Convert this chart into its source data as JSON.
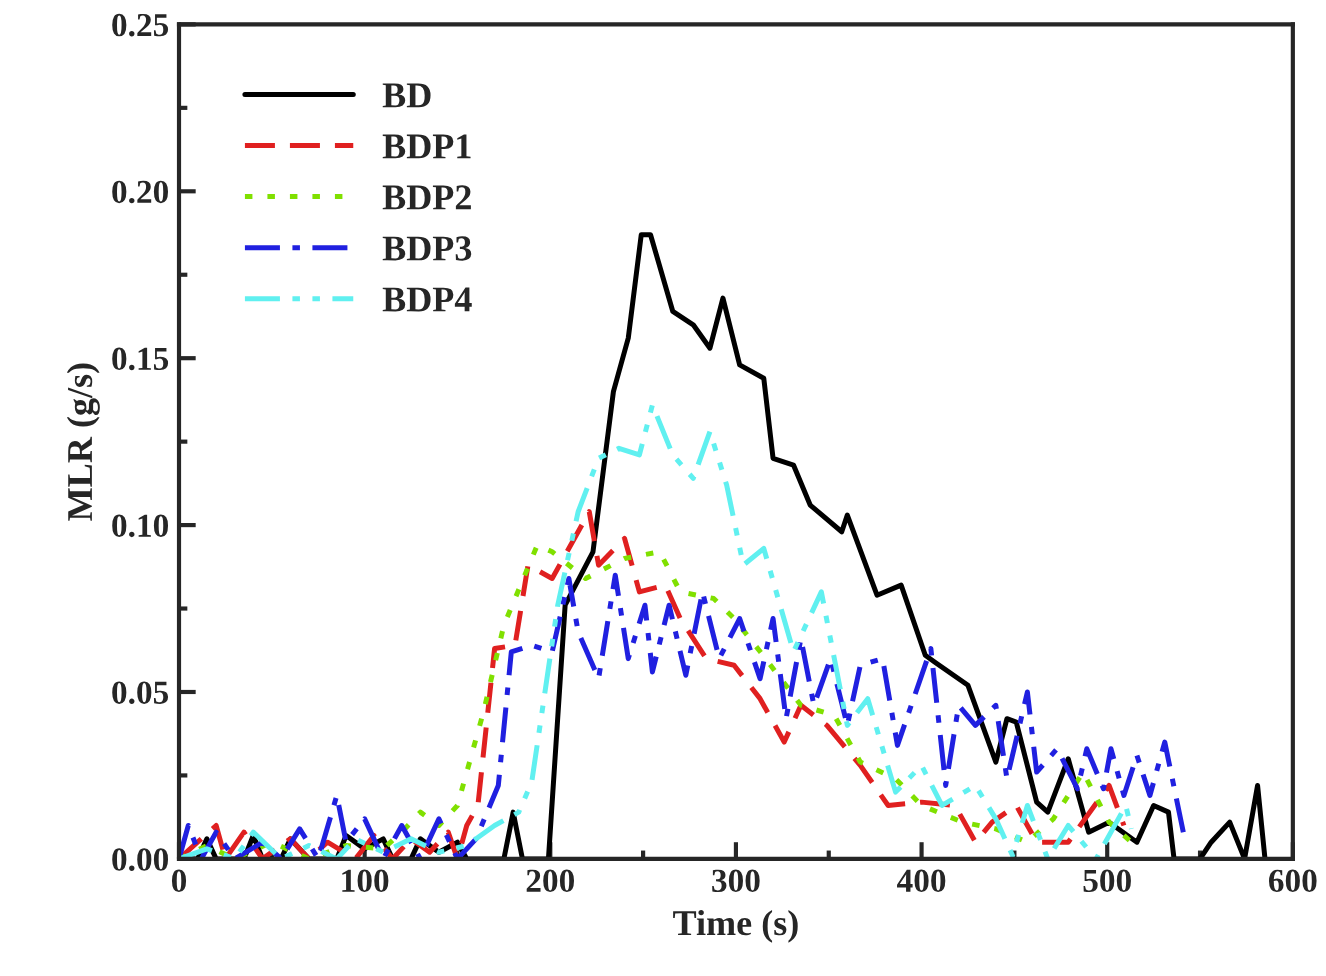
{
  "chart_data": {
    "type": "line",
    "xlabel": "Time (s)",
    "ylabel": "MLR (g/s)",
    "xlim": [
      0,
      600
    ],
    "xticks": [
      0,
      100,
      200,
      300,
      400,
      500,
      600
    ],
    "ylim": [
      0,
      0.25
    ],
    "yticks": [
      {
        "value": 0,
        "label": "0.00"
      },
      {
        "value": 0.05,
        "label": "0.05"
      },
      {
        "value": 0.1,
        "label": "0.10"
      },
      {
        "value": 0.15,
        "label": "0.15"
      },
      {
        "value": 0.2,
        "label": "0.20"
      },
      {
        "value": 0.25,
        "label": "0.25"
      }
    ],
    "grid": false,
    "legend": "top left",
    "marker": "none",
    "series": [
      {
        "name": "BD",
        "color": "#000000",
        "line_style": "solid",
        "x": [
          0,
          10,
          15,
          20,
          35,
          40,
          45,
          55,
          60,
          70,
          85,
          90,
          100,
          110,
          115,
          125,
          130,
          140,
          150,
          155,
          165,
          175,
          180,
          185,
          199,
          208,
          223,
          234,
          242,
          249,
          254,
          266,
          277,
          286,
          293,
          302,
          315,
          320,
          331,
          340,
          357,
          360,
          376,
          389,
          402,
          407,
          425,
          440,
          446,
          451,
          462,
          468,
          479,
          490,
          501,
          516,
          525,
          533,
          536,
          550,
          556,
          566,
          574,
          581,
          585
        ],
        "values": [
          0,
          0,
          0.006,
          0,
          0,
          0.007,
          0,
          0,
          0.006,
          0,
          0,
          0.007,
          0.003,
          0.006,
          0,
          0,
          0.006,
          0.002,
          0.005,
          0,
          0,
          0,
          0.014,
          0,
          0,
          0.076,
          0.092,
          0.14,
          0.156,
          0.187,
          0.187,
          0.164,
          0.16,
          0.153,
          0.168,
          0.148,
          0.144,
          0.12,
          0.118,
          0.106,
          0.098,
          0.103,
          0.079,
          0.082,
          0.061,
          0.059,
          0.052,
          0.029,
          0.042,
          0.041,
          0.017,
          0.014,
          0.03,
          0.008,
          0.011,
          0.005,
          0.016,
          0.014,
          0,
          0,
          0.005,
          0.011,
          0,
          0.022,
          0
        ]
      },
      {
        "name": "BDP1",
        "color": "#e02020",
        "line_style": "dashed",
        "x": [
          0,
          10,
          20,
          25,
          35,
          45,
          60,
          70,
          80,
          95,
          105,
          115,
          125,
          135,
          145,
          150,
          155,
          161,
          170,
          181,
          188,
          201,
          221,
          226,
          240,
          248,
          262,
          270,
          284,
          299,
          313,
          326,
          335,
          349,
          367,
          382,
          400,
          418,
          429,
          438,
          451,
          462,
          479,
          501,
          509
        ],
        "values": [
          0,
          0.005,
          0.01,
          0,
          0.008,
          0,
          0.006,
          0,
          0.005,
          0,
          0.007,
          0,
          0.006,
          0.002,
          0.008,
          0,
          0.01,
          0.016,
          0.063,
          0.064,
          0.088,
          0.084,
          0.104,
          0.088,
          0.096,
          0.08,
          0.082,
          0.072,
          0.06,
          0.058,
          0.048,
          0.035,
          0.046,
          0.04,
          0.028,
          0.016,
          0.017,
          0.016,
          0.005,
          0.011,
          0.016,
          0.005,
          0.005,
          0.022,
          0.01
        ]
      },
      {
        "name": "BDP2",
        "color": "#80e000",
        "line_style": "dotted",
        "x": [
          0,
          15,
          30,
          50,
          70,
          90,
          110,
          120,
          130,
          140,
          150,
          164,
          175,
          193,
          201,
          219,
          240,
          259,
          270,
          288,
          299,
          316,
          335,
          353,
          367,
          386,
          400,
          422,
          440,
          457,
          471,
          487,
          501,
          513
        ],
        "values": [
          0,
          0.004,
          0,
          0.005,
          0,
          0.004,
          0.003,
          0.008,
          0.014,
          0.01,
          0.016,
          0.044,
          0.07,
          0.094,
          0.092,
          0.084,
          0.09,
          0.092,
          0.08,
          0.078,
          0.072,
          0.06,
          0.046,
          0.043,
          0.029,
          0.024,
          0.016,
          0.011,
          0.009,
          0.005,
          0.012,
          0.026,
          0.011,
          0.005
        ]
      },
      {
        "name": "BDP3",
        "color": "#2020e0",
        "line_style": "dashdot",
        "x": [
          0,
          5,
          12,
          20,
          30,
          45,
          55,
          65,
          75,
          85,
          90,
          100,
          110,
          120,
          130,
          140,
          150,
          160,
          172,
          179,
          190,
          201,
          210,
          215,
          226,
          235,
          242,
          251,
          255,
          264,
          273,
          282,
          291,
          302,
          313,
          320,
          327,
          335,
          342,
          351,
          360,
          367,
          379,
          387,
          405,
          413,
          420,
          429,
          440,
          446,
          457,
          462,
          473,
          484,
          489,
          498,
          502,
          509,
          516,
          523,
          531,
          541
        ],
        "values": [
          0,
          0.01,
          0,
          0.008,
          0,
          0.005,
          0,
          0.009,
          0,
          0.019,
          0.005,
          0.012,
          0,
          0.01,
          0,
          0.012,
          0,
          0.006,
          0.022,
          0.062,
          0.064,
          0.062,
          0.084,
          0.068,
          0.054,
          0.085,
          0.06,
          0.076,
          0.056,
          0.076,
          0.055,
          0.08,
          0.06,
          0.072,
          0.054,
          0.072,
          0.042,
          0.066,
          0.046,
          0.06,
          0.04,
          0.058,
          0.06,
          0.034,
          0.063,
          0.022,
          0.046,
          0.04,
          0.046,
          0.024,
          0.05,
          0.026,
          0.033,
          0.021,
          0.033,
          0.021,
          0.033,
          0.019,
          0.031,
          0.019,
          0.035,
          0.008
        ]
      },
      {
        "name": "BDP4",
        "color": "#60f0f0",
        "line_style": "dashdotdot",
        "x": [
          0,
          15,
          30,
          40,
          55,
          70,
          85,
          95,
          110,
          125,
          140,
          155,
          170,
          183,
          190,
          204,
          215,
          226,
          237,
          248,
          255,
          266,
          277,
          286,
          295,
          304,
          315,
          331,
          346,
          360,
          371,
          386,
          400,
          411,
          429,
          440,
          449,
          457,
          468,
          479,
          494,
          510,
          513
        ],
        "values": [
          0,
          0.003,
          0,
          0.008,
          0,
          0.004,
          0,
          0.006,
          0.002,
          0.006,
          0.002,
          0.004,
          0.01,
          0.014,
          0.023,
          0.076,
          0.104,
          0.12,
          0.123,
          0.121,
          0.136,
          0.121,
          0.114,
          0.128,
          0.112,
          0.088,
          0.093,
          0.062,
          0.08,
          0.04,
          0.048,
          0.02,
          0.028,
          0.016,
          0.022,
          0.012,
          0.001,
          0.016,
          0,
          0.01,
          0,
          0.016,
          0.009
        ]
      }
    ]
  }
}
